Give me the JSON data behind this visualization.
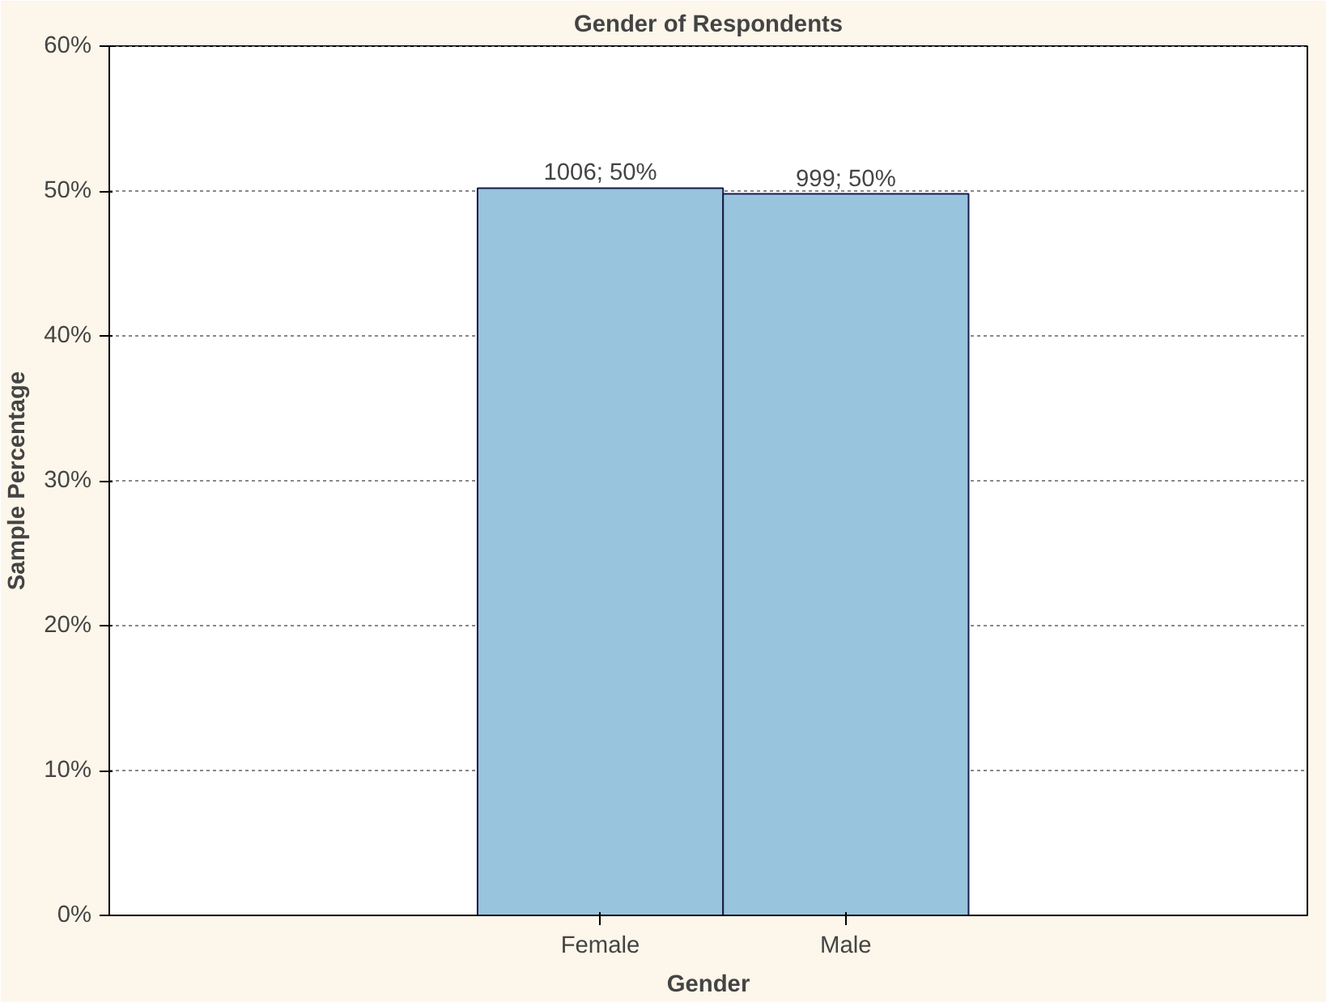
{
  "chart_data": {
    "type": "bar",
    "title": "Gender of Respondents",
    "xlabel": "Gender",
    "ylabel": "Sample Percentage",
    "categories": [
      "Female",
      "Male"
    ],
    "series": [
      {
        "color": "#98c4de",
        "values": [
          50.2,
          49.8
        ],
        "value_labels": [
          "1006; 50%",
          "999; 50%"
        ]
      }
    ],
    "ylim": [
      0,
      60
    ],
    "yticks": [
      {
        "value": 0,
        "label": "0%"
      },
      {
        "value": 10,
        "label": "10%"
      },
      {
        "value": 20,
        "label": "20%"
      },
      {
        "value": 30,
        "label": "30%"
      },
      {
        "value": 40,
        "label": "40%"
      },
      {
        "value": 50,
        "label": "50%"
      },
      {
        "value": 60,
        "label": "60%"
      }
    ],
    "grid": "y"
  }
}
